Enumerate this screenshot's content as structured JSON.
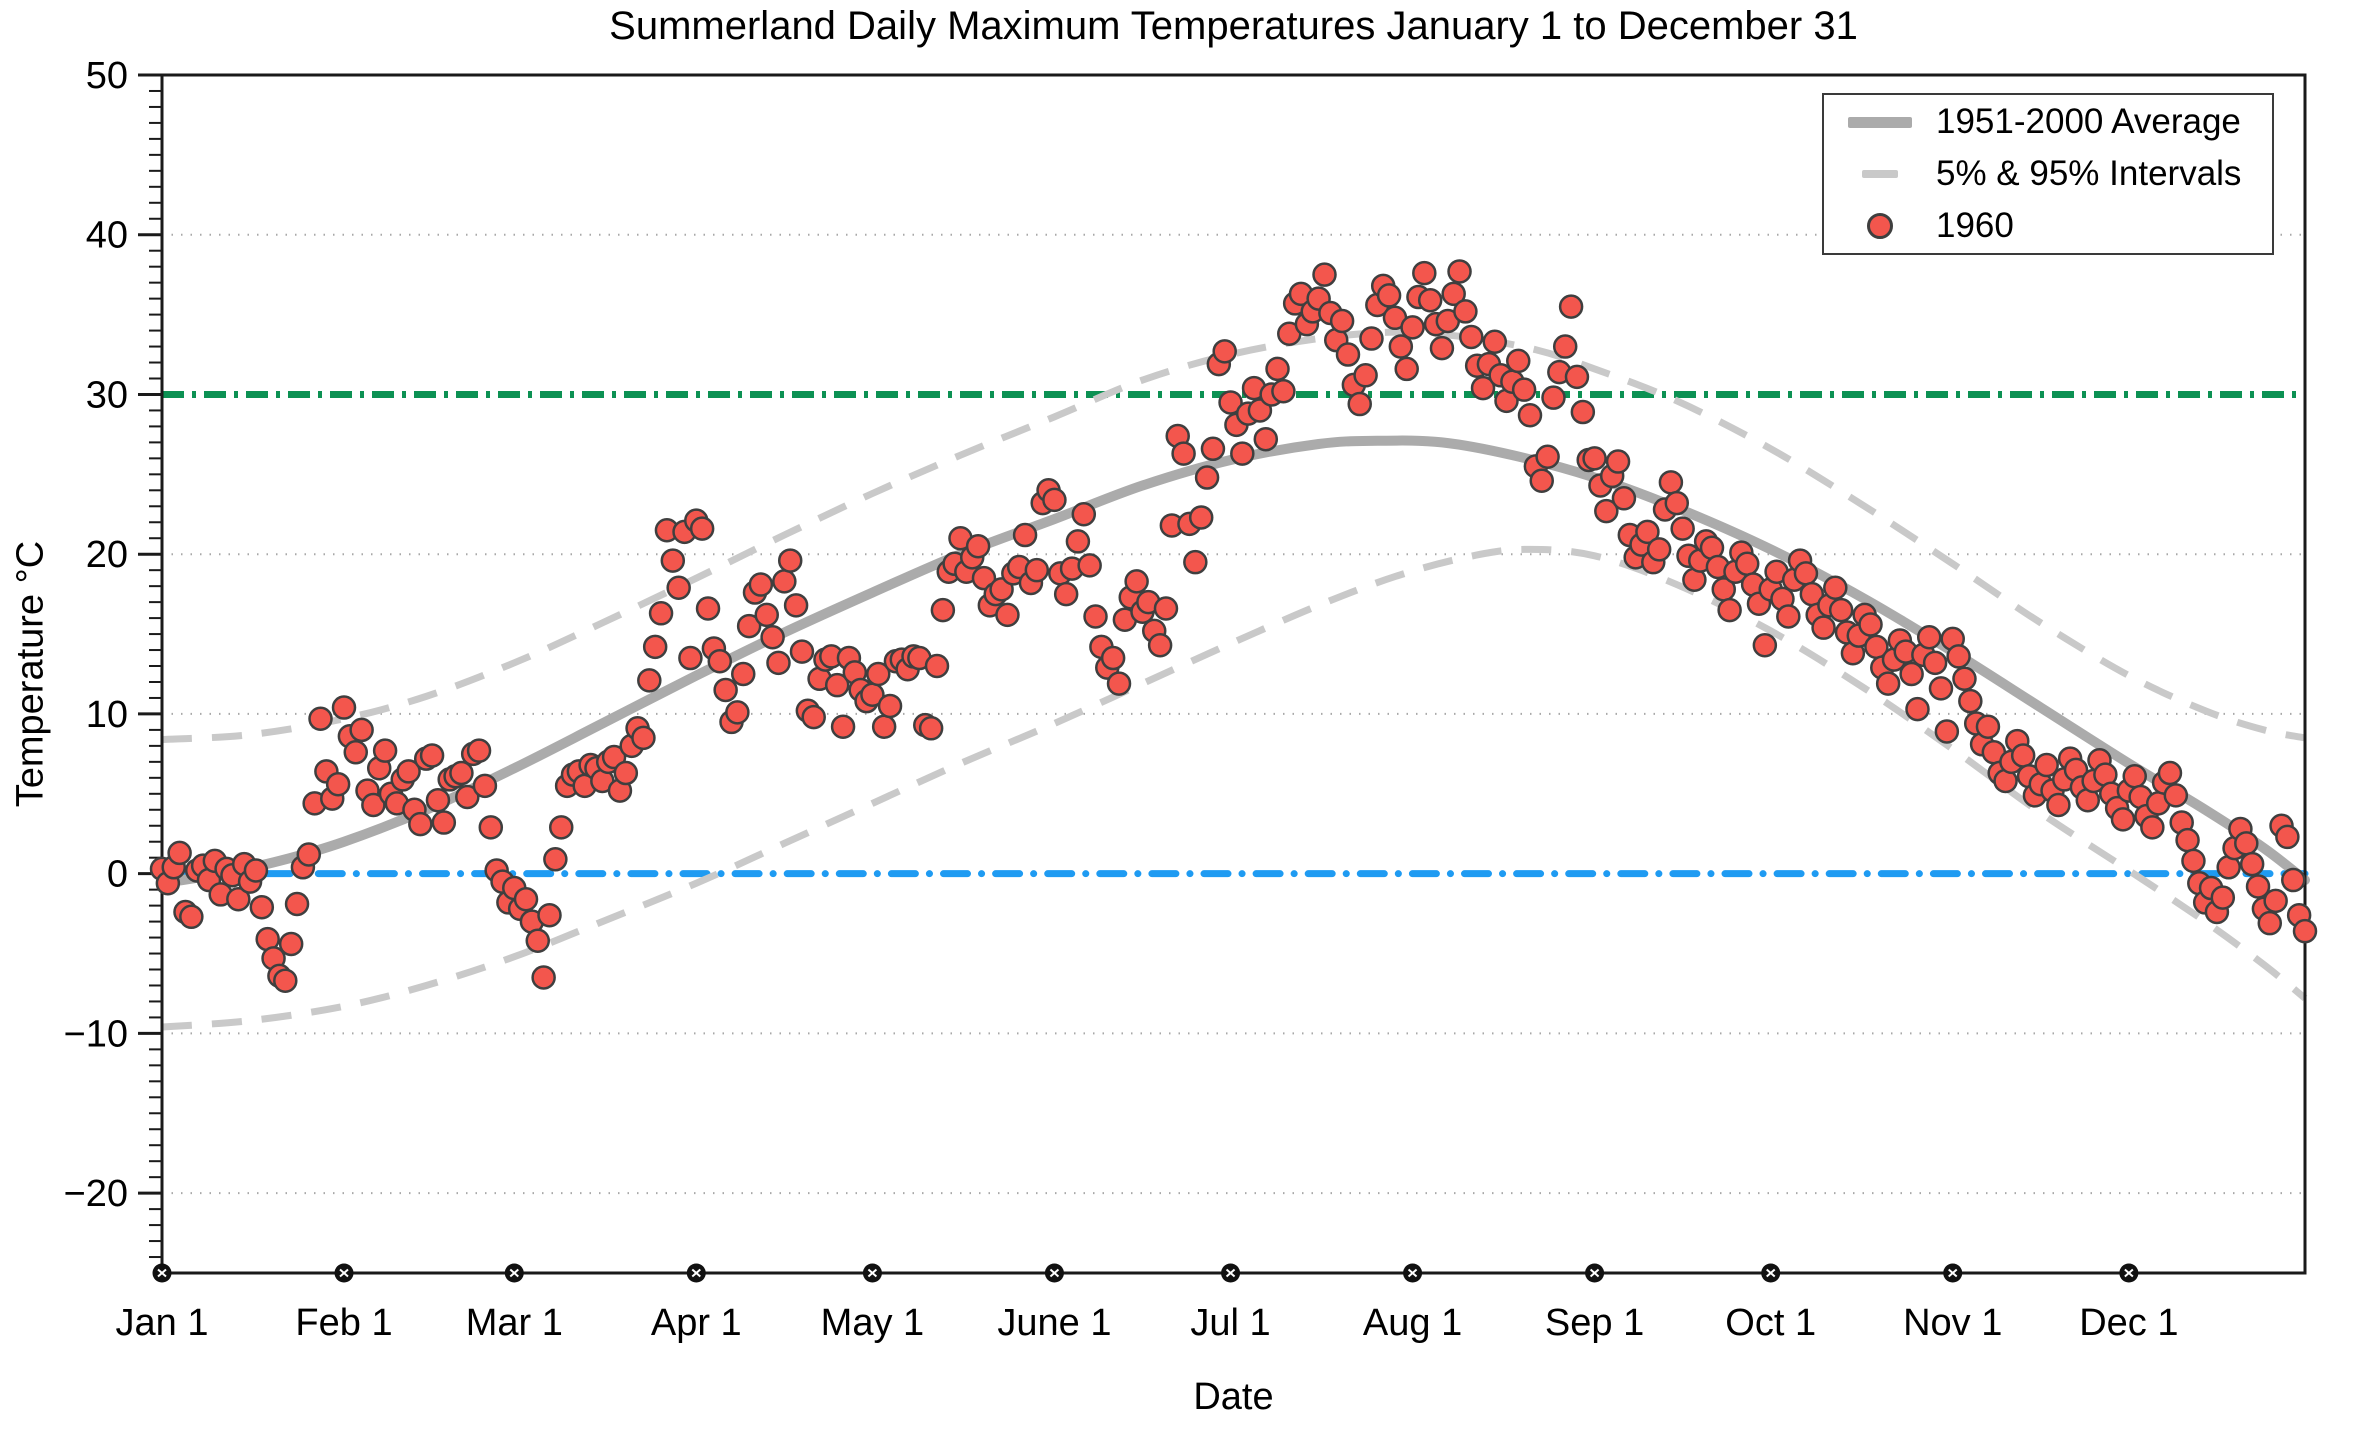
{
  "chart_data": {
    "type": "scatter",
    "title": "Summerland Daily Maximum Temperatures January 1 to December 31",
    "xlabel": "Date",
    "ylabel": "Temperature °C",
    "x_axis": {
      "start_day": 0,
      "end_day": 365,
      "tick_labels": [
        "Jan 1",
        "Feb 1",
        "Mar 1",
        "Apr 1",
        "May 1",
        "June 1",
        "Jul 1",
        "Aug 1",
        "Sep 1",
        "Oct 1",
        "Nov 1",
        "Dec 1"
      ],
      "tick_days": [
        0,
        31,
        60,
        91,
        121,
        152,
        182,
        213,
        244,
        274,
        305,
        335
      ]
    },
    "y_axis": {
      "lim": [
        -25,
        50
      ],
      "major_ticks": [
        50,
        40,
        30,
        20,
        10,
        0,
        -10,
        -20
      ],
      "minor_tick_step": 1,
      "gridline_values": [
        40,
        20,
        10,
        -10,
        -20
      ],
      "grid_style": "dotted"
    },
    "reference_lines": [
      {
        "name": "30-degree-line",
        "y": 30,
        "color": "#0c9153",
        "style": "dash-dot"
      },
      {
        "name": "freezing-line",
        "y": 0,
        "color": "#1f9bf2",
        "style": "dash-dot"
      }
    ],
    "legend": {
      "position": "top-right",
      "items": [
        {
          "label": "1951-2000 Average",
          "swatch": "thick-gray-line"
        },
        {
          "label": "5% & 95% Intervals",
          "swatch": "dashed-gray-line"
        },
        {
          "label": "1960",
          "swatch": "red-marker"
        }
      ]
    },
    "colors": {
      "average_line": "#ababab",
      "interval_line": "#c9c9c9",
      "marker_fill": "#f3564d",
      "marker_edge": "#3f3f3f",
      "gridline": "#a8a8a8",
      "axis": "#1a1a1a"
    },
    "series": [
      {
        "name": "1951-2000 Average",
        "type": "line",
        "style": "solid",
        "color": "#ababab",
        "points": [
          [
            0,
            -0.6
          ],
          [
            10,
            0.0
          ],
          [
            20,
            0.8
          ],
          [
            31,
            2.0
          ],
          [
            45,
            4.0
          ],
          [
            60,
            6.6
          ],
          [
            75,
            9.4
          ],
          [
            91,
            12.4
          ],
          [
            106,
            15.1
          ],
          [
            121,
            17.6
          ],
          [
            136,
            20.0
          ],
          [
            152,
            22.2
          ],
          [
            167,
            24.3
          ],
          [
            182,
            25.9
          ],
          [
            197,
            26.9
          ],
          [
            207,
            27.1
          ],
          [
            218,
            27.0
          ],
          [
            230,
            26.2
          ],
          [
            244,
            24.8
          ],
          [
            258,
            22.9
          ],
          [
            274,
            20.3
          ],
          [
            290,
            17.2
          ],
          [
            305,
            13.9
          ],
          [
            320,
            10.4
          ],
          [
            335,
            6.9
          ],
          [
            348,
            4.0
          ],
          [
            358,
            1.6
          ],
          [
            365,
            -0.4
          ]
        ]
      },
      {
        "name": "95% Interval",
        "type": "line",
        "style": "dashed",
        "color": "#c9c9c9",
        "points": [
          [
            0,
            8.4
          ],
          [
            15,
            8.7
          ],
          [
            31,
            9.7
          ],
          [
            45,
            11.1
          ],
          [
            60,
            13.2
          ],
          [
            75,
            15.7
          ],
          [
            91,
            18.5
          ],
          [
            106,
            21.2
          ],
          [
            121,
            23.8
          ],
          [
            136,
            26.2
          ],
          [
            152,
            28.6
          ],
          [
            167,
            30.9
          ],
          [
            182,
            32.5
          ],
          [
            197,
            33.5
          ],
          [
            210,
            33.9
          ],
          [
            222,
            33.6
          ],
          [
            234,
            32.8
          ],
          [
            244,
            31.6
          ],
          [
            258,
            29.6
          ],
          [
            274,
            26.6
          ],
          [
            290,
            23.0
          ],
          [
            305,
            19.4
          ],
          [
            320,
            15.7
          ],
          [
            335,
            12.4
          ],
          [
            348,
            10.2
          ],
          [
            358,
            9.0
          ],
          [
            365,
            8.5
          ]
        ]
      },
      {
        "name": "5% Interval",
        "type": "line",
        "style": "dashed",
        "color": "#c9c9c9",
        "points": [
          [
            0,
            -9.6
          ],
          [
            15,
            -9.2
          ],
          [
            31,
            -8.3
          ],
          [
            45,
            -7.0
          ],
          [
            60,
            -5.2
          ],
          [
            75,
            -3.0
          ],
          [
            91,
            -0.6
          ],
          [
            106,
            1.9
          ],
          [
            121,
            4.4
          ],
          [
            136,
            6.9
          ],
          [
            152,
            9.4
          ],
          [
            167,
            11.9
          ],
          [
            182,
            14.4
          ],
          [
            197,
            16.8
          ],
          [
            210,
            18.6
          ],
          [
            222,
            19.8
          ],
          [
            232,
            20.3
          ],
          [
            244,
            19.9
          ],
          [
            258,
            18.1
          ],
          [
            274,
            15.2
          ],
          [
            290,
            11.6
          ],
          [
            305,
            7.8
          ],
          [
            320,
            3.8
          ],
          [
            335,
            0.2
          ],
          [
            348,
            -3.0
          ],
          [
            358,
            -5.7
          ],
          [
            365,
            -7.8
          ]
        ]
      },
      {
        "name": "1960",
        "type": "scatter",
        "marker_color": "#f3564d",
        "marker_edge": "#3f3f3f",
        "start_day": 0,
        "daily_values": [
          0.3,
          -0.6,
          0.4,
          1.3,
          -2.4,
          -2.7,
          0.2,
          0.5,
          -0.4,
          0.8,
          -1.3,
          0.3,
          -0.1,
          -1.6,
          0.6,
          -0.5,
          0.2,
          -2.1,
          -4.1,
          -5.3,
          -6.4,
          -6.7,
          -4.4,
          -1.9,
          0.4,
          1.2,
          4.4,
          9.7,
          6.4,
          4.7,
          5.6,
          10.4,
          8.6,
          7.6,
          9.0,
          5.2,
          4.3,
          6.6,
          7.7,
          5.0,
          4.4,
          5.9,
          6.4,
          4.0,
          3.1,
          7.2,
          7.4,
          4.6,
          3.2,
          5.9,
          6.1,
          6.3,
          4.8,
          7.5,
          7.7,
          5.5,
          2.9,
          0.2,
          -0.5,
          -1.8,
          -0.9,
          -2.2,
          -1.6,
          -3.0,
          -4.2,
          -6.5,
          -2.6,
          0.9,
          2.9,
          5.5,
          6.2,
          6.4,
          5.5,
          6.8,
          6.6,
          5.8,
          7.0,
          7.3,
          5.2,
          6.3,
          8.0,
          9.1,
          8.5,
          12.1,
          14.2,
          16.3,
          21.5,
          19.6,
          17.9,
          21.4,
          13.5,
          22.1,
          21.6,
          16.6,
          14.1,
          13.3,
          11.5,
          9.5,
          10.1,
          12.5,
          15.5,
          17.6,
          18.1,
          16.2,
          14.8,
          13.2,
          18.3,
          19.6,
          16.8,
          13.9,
          10.2,
          9.8,
          12.2,
          13.4,
          13.6,
          11.8,
          9.2,
          13.5,
          12.6,
          11.5,
          10.8,
          11.2,
          12.5,
          9.2,
          10.5,
          13.3,
          13.4,
          12.8,
          13.6,
          13.5,
          9.3,
          9.1,
          13.0,
          16.5,
          18.9,
          19.4,
          21.0,
          18.9,
          19.8,
          20.5,
          18.5,
          16.8,
          17.5,
          17.8,
          16.2,
          18.8,
          19.2,
          21.2,
          18.2,
          19.0,
          23.2,
          24.0,
          23.4,
          18.8,
          17.5,
          19.1,
          20.8,
          22.5,
          19.3,
          16.1,
          14.2,
          12.9,
          13.5,
          11.9,
          15.9,
          17.3,
          18.3,
          16.4,
          17.0,
          15.2,
          14.3,
          16.6,
          21.8,
          27.4,
          26.3,
          21.9,
          19.5,
          22.3,
          24.8,
          26.6,
          31.9,
          32.7,
          29.5,
          28.1,
          26.3,
          28.8,
          30.4,
          29.0,
          27.2,
          30.0,
          31.6,
          30.2,
          33.8,
          35.7,
          36.3,
          34.4,
          35.2,
          36.0,
          37.5,
          35.1,
          33.4,
          34.6,
          32.5,
          30.6,
          29.4,
          31.2,
          33.5,
          35.6,
          36.8,
          36.2,
          34.8,
          33.0,
          31.6,
          34.2,
          36.1,
          37.6,
          35.9,
          34.4,
          32.9,
          34.6,
          36.3,
          37.7,
          35.2,
          33.6,
          31.8,
          30.4,
          31.9,
          33.3,
          31.2,
          29.6,
          30.8,
          32.1,
          30.3,
          28.7,
          25.5,
          24.6,
          26.1,
          29.8,
          31.4,
          33.0,
          35.5,
          31.1,
          28.9,
          25.9,
          26.0,
          24.3,
          22.7,
          24.9,
          25.8,
          23.5,
          21.2,
          19.8,
          20.6,
          21.4,
          19.5,
          20.3,
          22.8,
          24.5,
          23.2,
          21.6,
          19.9,
          18.4,
          19.6,
          20.8,
          20.4,
          19.2,
          17.8,
          16.5,
          18.9,
          20.1,
          19.4,
          18.1,
          16.9,
          14.3,
          17.8,
          18.9,
          17.2,
          16.1,
          18.4,
          19.6,
          18.8,
          17.5,
          16.2,
          15.4,
          16.8,
          17.9,
          16.5,
          15.1,
          13.8,
          14.9,
          16.2,
          15.6,
          14.2,
          12.9,
          11.9,
          13.4,
          14.6,
          13.9,
          12.5,
          10.3,
          13.7,
          14.8,
          13.2,
          11.6,
          8.9,
          14.7,
          13.6,
          12.2,
          10.8,
          9.4,
          8.1,
          9.2,
          7.6,
          6.3,
          5.8,
          7.0,
          8.3,
          7.4,
          6.1,
          4.9,
          5.6,
          6.8,
          5.2,
          4.3,
          5.9,
          7.2,
          6.5,
          5.4,
          4.6,
          5.8,
          7.1,
          6.2,
          5.0,
          4.1,
          3.4,
          5.2,
          6.1,
          4.8,
          3.6,
          2.9,
          4.4,
          5.7,
          6.3,
          4.9,
          3.2,
          2.1,
          0.8,
          -0.6,
          -1.8,
          -0.9,
          -2.4,
          -1.5,
          0.4,
          1.6,
          2.8,
          1.9,
          0.6,
          -0.8,
          -2.2,
          -3.1,
          -1.7,
          3.0,
          2.3,
          -0.4,
          -2.6,
          -3.6
        ]
      }
    ]
  }
}
